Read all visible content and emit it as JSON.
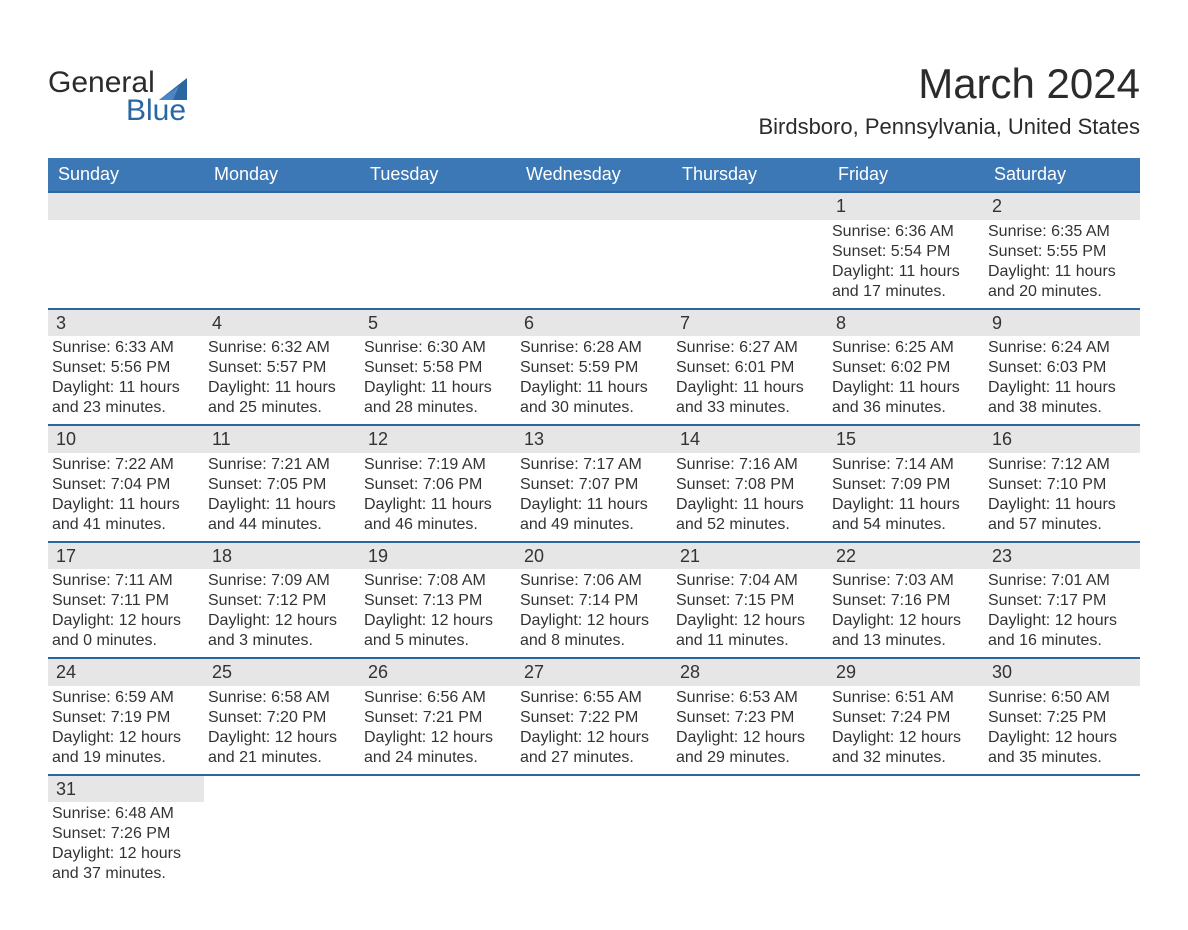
{
  "brand": {
    "part1": "General",
    "part2": "Blue"
  },
  "title": {
    "month": "March 2024",
    "location": "Birdsboro, Pennsylvania, United States"
  },
  "colors": {
    "header_blue": "#3b78b5",
    "accent_blue": "#2a66a1",
    "daynum_gray": "#e6e6e6",
    "text": "#333333",
    "logo_dark": "#2b2b2b",
    "page_bg": "#ffffff"
  },
  "weekdays": [
    "Sunday",
    "Monday",
    "Tuesday",
    "Wednesday",
    "Thursday",
    "Friday",
    "Saturday"
  ],
  "weeks": [
    [
      null,
      null,
      null,
      null,
      null,
      {
        "n": "1",
        "sunrise": "Sunrise: 6:36 AM",
        "sunset": "Sunset: 5:54 PM",
        "daylight1": "Daylight: 11 hours",
        "daylight2": "and 17 minutes."
      },
      {
        "n": "2",
        "sunrise": "Sunrise: 6:35 AM",
        "sunset": "Sunset: 5:55 PM",
        "daylight1": "Daylight: 11 hours",
        "daylight2": "and 20 minutes."
      }
    ],
    [
      {
        "n": "3",
        "sunrise": "Sunrise: 6:33 AM",
        "sunset": "Sunset: 5:56 PM",
        "daylight1": "Daylight: 11 hours",
        "daylight2": "and 23 minutes."
      },
      {
        "n": "4",
        "sunrise": "Sunrise: 6:32 AM",
        "sunset": "Sunset: 5:57 PM",
        "daylight1": "Daylight: 11 hours",
        "daylight2": "and 25 minutes."
      },
      {
        "n": "5",
        "sunrise": "Sunrise: 6:30 AM",
        "sunset": "Sunset: 5:58 PM",
        "daylight1": "Daylight: 11 hours",
        "daylight2": "and 28 minutes."
      },
      {
        "n": "6",
        "sunrise": "Sunrise: 6:28 AM",
        "sunset": "Sunset: 5:59 PM",
        "daylight1": "Daylight: 11 hours",
        "daylight2": "and 30 minutes."
      },
      {
        "n": "7",
        "sunrise": "Sunrise: 6:27 AM",
        "sunset": "Sunset: 6:01 PM",
        "daylight1": "Daylight: 11 hours",
        "daylight2": "and 33 minutes."
      },
      {
        "n": "8",
        "sunrise": "Sunrise: 6:25 AM",
        "sunset": "Sunset: 6:02 PM",
        "daylight1": "Daylight: 11 hours",
        "daylight2": "and 36 minutes."
      },
      {
        "n": "9",
        "sunrise": "Sunrise: 6:24 AM",
        "sunset": "Sunset: 6:03 PM",
        "daylight1": "Daylight: 11 hours",
        "daylight2": "and 38 minutes."
      }
    ],
    [
      {
        "n": "10",
        "sunrise": "Sunrise: 7:22 AM",
        "sunset": "Sunset: 7:04 PM",
        "daylight1": "Daylight: 11 hours",
        "daylight2": "and 41 minutes."
      },
      {
        "n": "11",
        "sunrise": "Sunrise: 7:21 AM",
        "sunset": "Sunset: 7:05 PM",
        "daylight1": "Daylight: 11 hours",
        "daylight2": "and 44 minutes."
      },
      {
        "n": "12",
        "sunrise": "Sunrise: 7:19 AM",
        "sunset": "Sunset: 7:06 PM",
        "daylight1": "Daylight: 11 hours",
        "daylight2": "and 46 minutes."
      },
      {
        "n": "13",
        "sunrise": "Sunrise: 7:17 AM",
        "sunset": "Sunset: 7:07 PM",
        "daylight1": "Daylight: 11 hours",
        "daylight2": "and 49 minutes."
      },
      {
        "n": "14",
        "sunrise": "Sunrise: 7:16 AM",
        "sunset": "Sunset: 7:08 PM",
        "daylight1": "Daylight: 11 hours",
        "daylight2": "and 52 minutes."
      },
      {
        "n": "15",
        "sunrise": "Sunrise: 7:14 AM",
        "sunset": "Sunset: 7:09 PM",
        "daylight1": "Daylight: 11 hours",
        "daylight2": "and 54 minutes."
      },
      {
        "n": "16",
        "sunrise": "Sunrise: 7:12 AM",
        "sunset": "Sunset: 7:10 PM",
        "daylight1": "Daylight: 11 hours",
        "daylight2": "and 57 minutes."
      }
    ],
    [
      {
        "n": "17",
        "sunrise": "Sunrise: 7:11 AM",
        "sunset": "Sunset: 7:11 PM",
        "daylight1": "Daylight: 12 hours",
        "daylight2": "and 0 minutes."
      },
      {
        "n": "18",
        "sunrise": "Sunrise: 7:09 AM",
        "sunset": "Sunset: 7:12 PM",
        "daylight1": "Daylight: 12 hours",
        "daylight2": "and 3 minutes."
      },
      {
        "n": "19",
        "sunrise": "Sunrise: 7:08 AM",
        "sunset": "Sunset: 7:13 PM",
        "daylight1": "Daylight: 12 hours",
        "daylight2": "and 5 minutes."
      },
      {
        "n": "20",
        "sunrise": "Sunrise: 7:06 AM",
        "sunset": "Sunset: 7:14 PM",
        "daylight1": "Daylight: 12 hours",
        "daylight2": "and 8 minutes."
      },
      {
        "n": "21",
        "sunrise": "Sunrise: 7:04 AM",
        "sunset": "Sunset: 7:15 PM",
        "daylight1": "Daylight: 12 hours",
        "daylight2": "and 11 minutes."
      },
      {
        "n": "22",
        "sunrise": "Sunrise: 7:03 AM",
        "sunset": "Sunset: 7:16 PM",
        "daylight1": "Daylight: 12 hours",
        "daylight2": "and 13 minutes."
      },
      {
        "n": "23",
        "sunrise": "Sunrise: 7:01 AM",
        "sunset": "Sunset: 7:17 PM",
        "daylight1": "Daylight: 12 hours",
        "daylight2": "and 16 minutes."
      }
    ],
    [
      {
        "n": "24",
        "sunrise": "Sunrise: 6:59 AM",
        "sunset": "Sunset: 7:19 PM",
        "daylight1": "Daylight: 12 hours",
        "daylight2": "and 19 minutes."
      },
      {
        "n": "25",
        "sunrise": "Sunrise: 6:58 AM",
        "sunset": "Sunset: 7:20 PM",
        "daylight1": "Daylight: 12 hours",
        "daylight2": "and 21 minutes."
      },
      {
        "n": "26",
        "sunrise": "Sunrise: 6:56 AM",
        "sunset": "Sunset: 7:21 PM",
        "daylight1": "Daylight: 12 hours",
        "daylight2": "and 24 minutes."
      },
      {
        "n": "27",
        "sunrise": "Sunrise: 6:55 AM",
        "sunset": "Sunset: 7:22 PM",
        "daylight1": "Daylight: 12 hours",
        "daylight2": "and 27 minutes."
      },
      {
        "n": "28",
        "sunrise": "Sunrise: 6:53 AM",
        "sunset": "Sunset: 7:23 PM",
        "daylight1": "Daylight: 12 hours",
        "daylight2": "and 29 minutes."
      },
      {
        "n": "29",
        "sunrise": "Sunrise: 6:51 AM",
        "sunset": "Sunset: 7:24 PM",
        "daylight1": "Daylight: 12 hours",
        "daylight2": "and 32 minutes."
      },
      {
        "n": "30",
        "sunrise": "Sunrise: 6:50 AM",
        "sunset": "Sunset: 7:25 PM",
        "daylight1": "Daylight: 12 hours",
        "daylight2": "and 35 minutes."
      }
    ],
    [
      {
        "n": "31",
        "sunrise": "Sunrise: 6:48 AM",
        "sunset": "Sunset: 7:26 PM",
        "daylight1": "Daylight: 12 hours",
        "daylight2": "and 37 minutes."
      },
      null,
      null,
      null,
      null,
      null,
      null
    ]
  ]
}
